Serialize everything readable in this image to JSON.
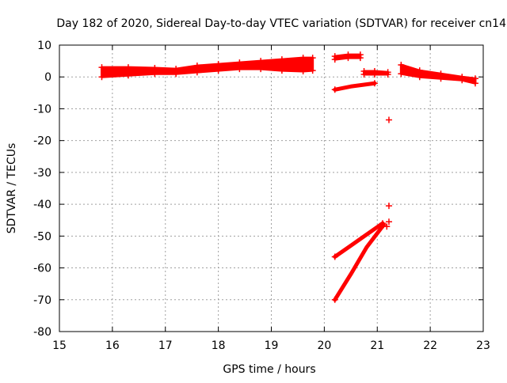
{
  "chart_data": {
    "type": "scatter",
    "title": "Day 182 of 2020, Sidereal Day-to-day VTEC variation (SDTVAR) for receiver cn14",
    "xlabel": "GPS time / hours",
    "ylabel": "SDTVAR / TECUs",
    "xlim": [
      15,
      23
    ],
    "ylim": [
      -80,
      10
    ],
    "x_ticks": [
      15,
      16,
      17,
      18,
      19,
      20,
      21,
      22,
      23
    ],
    "y_ticks": [
      10,
      0,
      -10,
      -20,
      -30,
      -40,
      -50,
      -60,
      -70,
      -80
    ],
    "grid": true,
    "legend": "none",
    "marker": "plus",
    "color": "#ff0000",
    "series": [
      {
        "bands": [
          {
            "x": [
              15.8,
              16.3,
              16.8,
              17.2,
              17.6,
              18.0,
              18.4,
              18.8,
              19.2,
              19.6,
              19.78
            ],
            "y_low": [
              0.0,
              0.5,
              1.0,
              1.0,
              1.5,
              2.0,
              2.5,
              2.5,
              2.0,
              1.8,
              2.0
            ],
            "y_high": [
              3.0,
              3.0,
              2.8,
              2.5,
              3.5,
              4.0,
              4.5,
              5.0,
              5.5,
              6.0,
              6.0
            ]
          },
          {
            "x": [
              21.45,
              21.8,
              22.2,
              22.6,
              22.85
            ],
            "y_low": [
              1.0,
              0.0,
              -0.5,
              -1.0,
              -2.0
            ],
            "y_high": [
              3.8,
              2.0,
              1.0,
              0.0,
              -0.5
            ]
          },
          {
            "x": [
              20.2,
              20.45,
              20.68
            ],
            "y_low": [
              5.5,
              6.0,
              6.0
            ],
            "y_high": [
              6.5,
              7.0,
              7.0
            ]
          },
          {
            "x": [
              20.75,
              20.95,
              21.2
            ],
            "y_low": [
              0.8,
              0.8,
              0.8
            ],
            "y_high": [
              1.8,
              1.8,
              1.5
            ]
          }
        ],
        "lines": [
          {
            "x": [
              20.2,
              20.5,
              20.95
            ],
            "y": [
              -4.0,
              -3.0,
              -2.0
            ]
          },
          {
            "x": [
              20.2,
              20.5,
              20.8,
              21.1
            ],
            "y": [
              -56.5,
              -53.0,
              -49.5,
              -46.0
            ]
          },
          {
            "x": [
              20.2,
              20.5,
              20.8,
              21.12
            ],
            "y": [
              -70.0,
              -62.0,
              -53.5,
              -46.5
            ]
          }
        ],
        "points": [
          {
            "x": 21.22,
            "y": -13.5
          },
          {
            "x": 21.22,
            "y": -40.5
          },
          {
            "x": 21.22,
            "y": -45.5
          },
          {
            "x": 21.18,
            "y": -47.0
          }
        ]
      }
    ]
  }
}
